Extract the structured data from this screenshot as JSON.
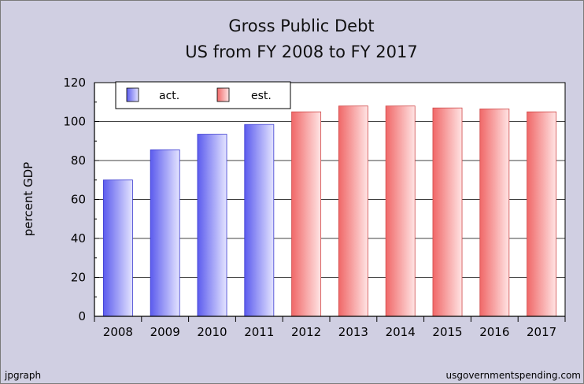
{
  "chart_data": {
    "type": "bar",
    "title": "Gross Public Debt",
    "subtitle": "US from FY 2008 to FY 2017",
    "xlabel": "",
    "ylabel": "percent GDP",
    "ylim": [
      0,
      120
    ],
    "yticks": [
      0,
      20,
      40,
      60,
      80,
      100,
      120
    ],
    "grid": true,
    "legend_position": "top-left",
    "categories": [
      "2008",
      "2009",
      "2010",
      "2011",
      "2012",
      "2013",
      "2014",
      "2015",
      "2016",
      "2017"
    ],
    "series": [
      {
        "name": "act.",
        "color": "#7b7bf6",
        "values": [
          70,
          85.5,
          93.5,
          98.5,
          null,
          null,
          null,
          null,
          null,
          null
        ]
      },
      {
        "name": "est.",
        "color": "#f58c8c",
        "values": [
          null,
          null,
          null,
          null,
          105,
          108,
          108,
          107,
          106.5,
          105
        ]
      }
    ]
  },
  "footer": {
    "left": "jpgraph",
    "right": "usgovernmentspending.com"
  }
}
